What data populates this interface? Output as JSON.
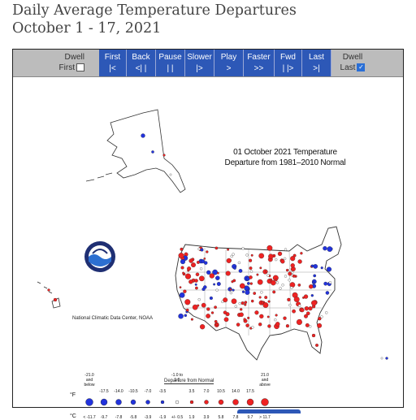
{
  "title": {
    "line1": "Daily Average Temperature Departures",
    "line2": "October 1 - 17, 2021"
  },
  "toolbar": {
    "dwell_first": {
      "top": "Dwell",
      "bottom": "First"
    },
    "dwell_last": {
      "top": "Dwell",
      "bottom": "Last"
    },
    "buttons": [
      {
        "top": "First",
        "bottom": "|<"
      },
      {
        "top": "Back",
        "bottom": "<| |"
      },
      {
        "top": "Pause",
        "bottom": "| |"
      },
      {
        "top": "Slower",
        "bottom": "|>"
      },
      {
        "top": "Play",
        "bottom": ">"
      },
      {
        "top": "Faster",
        "bottom": ">>"
      },
      {
        "top": "Fwd",
        "bottom": "| |>"
      },
      {
        "top": "Last",
        "bottom": ">|"
      }
    ],
    "colors": {
      "button": "#2d58b7",
      "bar": "#bcbcbc"
    }
  },
  "map": {
    "title_line1": "01 October 2021 Temperature",
    "title_line2": "Departure from 1981–2010 Normal",
    "credit": "National Climatic Data Center, NOAA",
    "logo": "NOAA",
    "colors": {
      "cold": "#2233dd",
      "warm": "#ee2222",
      "neutral": "#ffffff"
    }
  },
  "legend": {
    "title": "Departure from Normal",
    "f_unit": "°F",
    "c_unit": "°C",
    "f_labels": [
      "-21.0 and below",
      "-17.5",
      "-14.0",
      "-10.5",
      "-7.0",
      "-3.5",
      "-1.0 to 1.0",
      "3.5",
      "7.0",
      "10.5",
      "14.0",
      "17.5",
      "21.0 and above"
    ],
    "c_labels": [
      "< -11.7",
      "-9.7",
      "-7.8",
      "-5.8",
      "-3.9",
      "-1.9",
      "+/- 0.5",
      "1.9",
      "3.9",
      "5.8",
      "7.8",
      "9.7",
      "> 11.7"
    ]
  }
}
